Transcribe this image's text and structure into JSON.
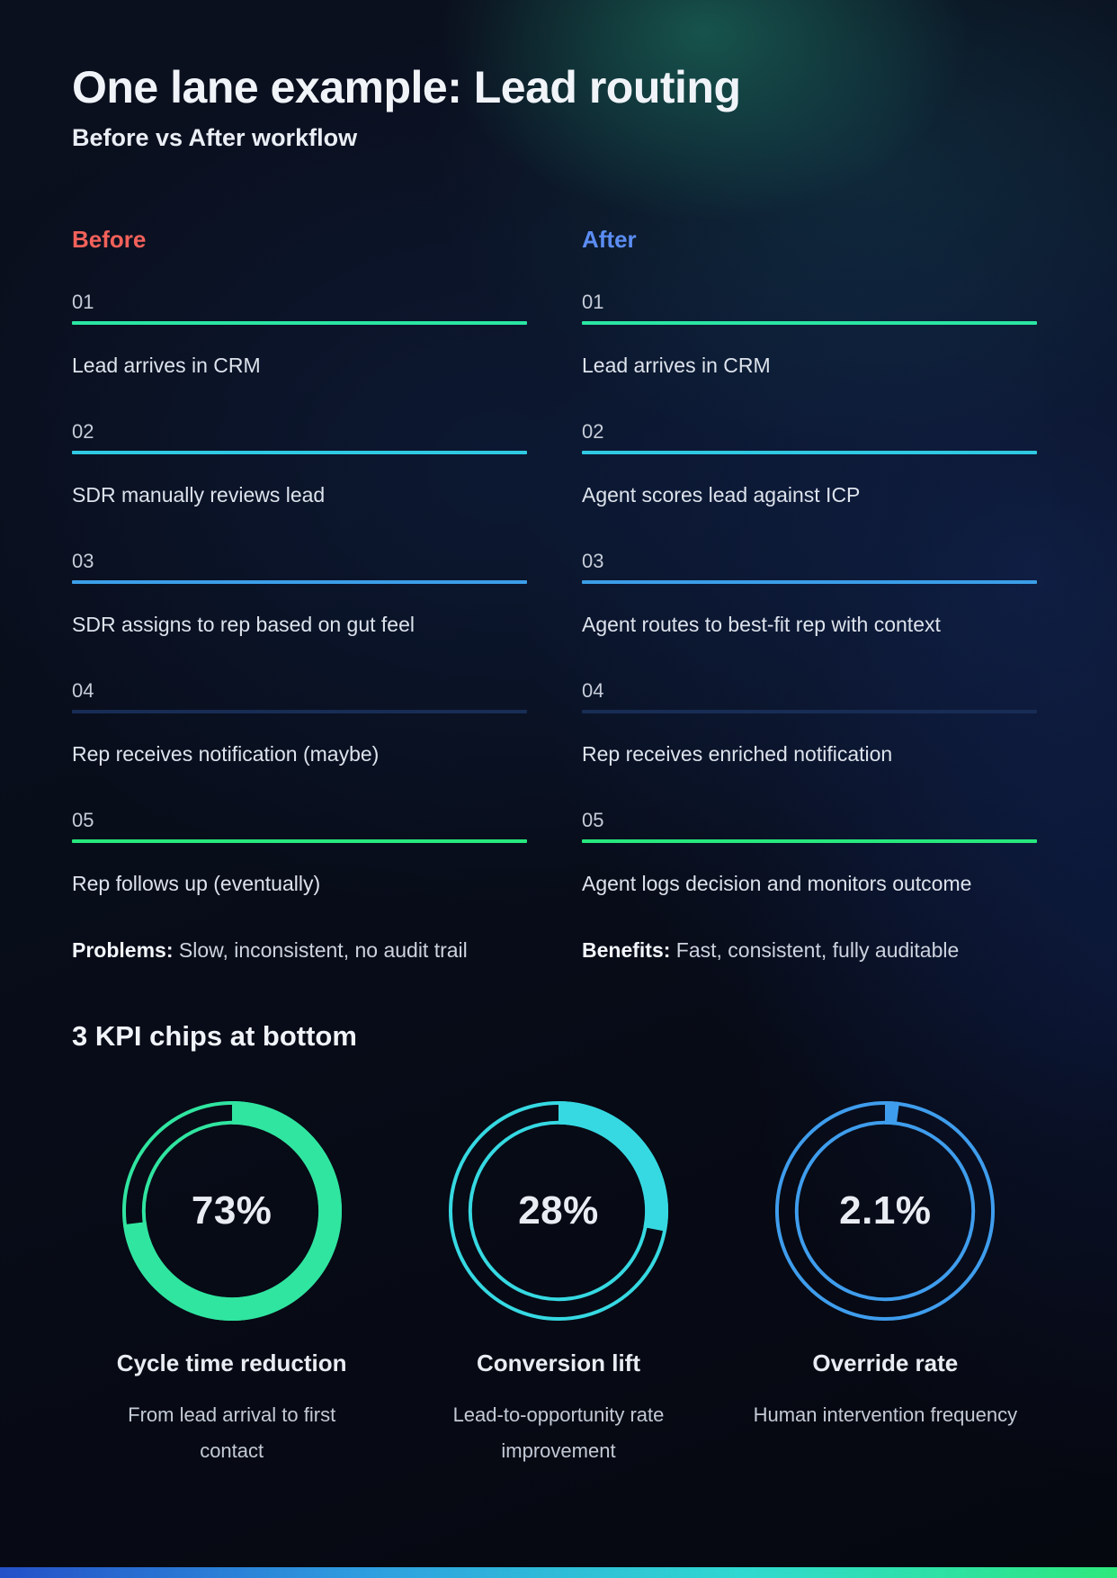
{
  "page": {
    "title": "One lane example: Lead routing",
    "subtitle": "Before vs After workflow"
  },
  "columns": {
    "before": {
      "label": "Before",
      "accent": "#f2615a",
      "steps": [
        {
          "num": "01",
          "text": "Lead arrives in CRM",
          "line_color": "#2ae6a3"
        },
        {
          "num": "02",
          "text": "SDR manually reviews lead",
          "line_color": "#30c9e2"
        },
        {
          "num": "03",
          "text": "SDR assigns to rep based on gut feel",
          "line_color": "#3b9ee8"
        },
        {
          "num": "04",
          "text": "Rep receives notification (maybe)",
          "line_color": "#182d55"
        },
        {
          "num": "05",
          "text": "Rep follows up (eventually)",
          "line_color": "#27e87d"
        }
      ],
      "footer_label": "Problems:",
      "footer_text": " Slow, inconsistent, no audit trail"
    },
    "after": {
      "label": "After",
      "accent": "#5b8df2",
      "steps": [
        {
          "num": "01",
          "text": "Lead arrives in CRM",
          "line_color": "#2ae6a3"
        },
        {
          "num": "02",
          "text": "Agent scores lead against ICP",
          "line_color": "#30c9e2"
        },
        {
          "num": "03",
          "text": "Agent routes to best-fit rep with context",
          "line_color": "#3b9ee8"
        },
        {
          "num": "04",
          "text": "Rep receives enriched notification",
          "line_color": "#182d55"
        },
        {
          "num": "05",
          "text": "Agent logs decision and monitors outcome",
          "line_color": "#27e87d"
        }
      ],
      "footer_label": "Benefits:",
      "footer_text": " Fast, consistent, fully auditable"
    }
  },
  "kpi_section": {
    "heading": "3 KPI chips at bottom",
    "chips": [
      {
        "value_label": "73%",
        "percent": 73,
        "color": "#30e5a0",
        "title": "Cycle time reduction",
        "description": "From lead arrival to first contact"
      },
      {
        "value_label": "28%",
        "percent": 28,
        "color": "#36d9e2",
        "title": "Conversion lift",
        "description": "Lead-to-opportunity rate improvement"
      },
      {
        "value_label": "2.1%",
        "percent": 2.1,
        "color": "#3f9ded",
        "title": "Override rate",
        "description": "Human intervention frequency"
      }
    ]
  },
  "footer_bar": {
    "colors": [
      "#2450c8",
      "#2e9fe0",
      "#2fd9d0",
      "#2ee87d"
    ]
  },
  "chart_data": [
    {
      "type": "pie",
      "variant": "donut-progress",
      "title": "Cycle time reduction",
      "subtitle": "From lead arrival to first contact",
      "center_label": "73%",
      "values": [
        73,
        27
      ],
      "slice_names": [
        "filled",
        "remainder"
      ],
      "color": "#30e5a0",
      "start_angle_deg": 0,
      "direction": "clockwise"
    },
    {
      "type": "pie",
      "variant": "donut-progress",
      "title": "Conversion lift",
      "subtitle": "Lead-to-opportunity rate improvement",
      "center_label": "28%",
      "values": [
        28,
        72
      ],
      "slice_names": [
        "filled",
        "remainder"
      ],
      "color": "#36d9e2",
      "start_angle_deg": 0,
      "direction": "clockwise"
    },
    {
      "type": "pie",
      "variant": "donut-progress",
      "title": "Override rate",
      "subtitle": "Human intervention frequency",
      "center_label": "2.1%",
      "values": [
        2.1,
        97.9
      ],
      "slice_names": [
        "filled",
        "remainder"
      ],
      "color": "#3f9ded",
      "start_angle_deg": 0,
      "direction": "clockwise"
    }
  ]
}
